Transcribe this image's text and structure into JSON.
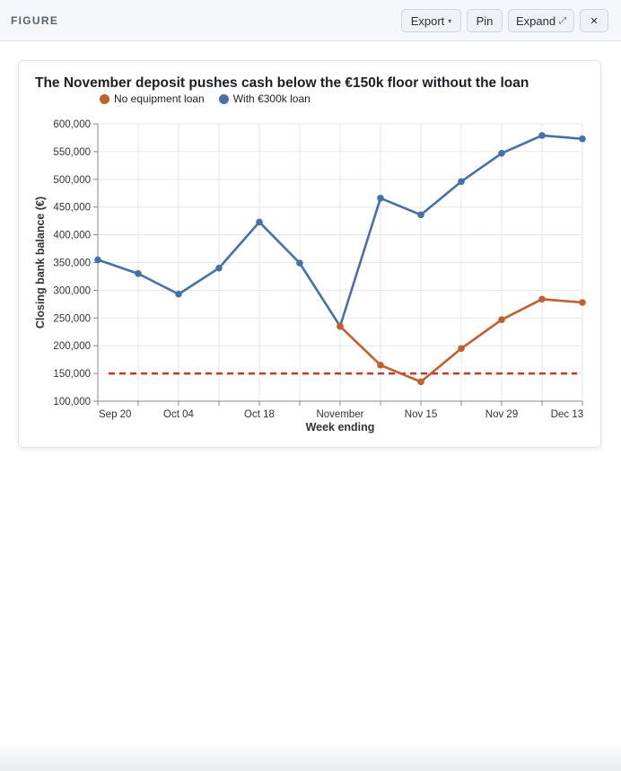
{
  "panel": {
    "title": "FIGURE",
    "export_label": "Export",
    "pin_label": "Pin",
    "expand_label": "Expand",
    "close_label": "✕",
    "caret_icon": "caret-down-icon",
    "expand_icon": "expand-arrow-icon"
  },
  "colors": {
    "no_loan": "#c0602e",
    "with_loan": "#4670a8",
    "floor": "#c0392b",
    "grid": "#e6e6e6"
  },
  "chart_data": {
    "type": "line",
    "title": "The November deposit pushes cash below the €150k floor without the loan",
    "xlabel": "Week ending",
    "ylabel": "Closing bank balance (€)",
    "ylim": [
      100000,
      600000
    ],
    "yticks": [
      "600,000",
      "550,000",
      "500,000",
      "450,000",
      "400,000",
      "350,000",
      "300,000",
      "250,000",
      "200,000",
      "150,000",
      "100,000"
    ],
    "ytick_values": [
      600000,
      550000,
      500000,
      450000,
      400000,
      350000,
      300000,
      250000,
      200000,
      150000,
      100000
    ],
    "xtick_labels": [
      "Sep 20",
      "Oct 04",
      "Oct 18",
      "November",
      "Nov 15",
      "Nov 29",
      "Dec 13"
    ],
    "x": [
      "Sep 20",
      "Sep 27",
      "Oct 04",
      "Oct 11",
      "Oct 18",
      "Oct 25",
      "Nov 01",
      "Nov 08",
      "Nov 15",
      "Nov 22",
      "Nov 29",
      "Dec 06",
      "Dec 13"
    ],
    "series": [
      {
        "name": "No equipment loan",
        "values": [
          null,
          null,
          null,
          null,
          null,
          null,
          235000,
          165000,
          135000,
          195000,
          247000,
          284000,
          278000
        ]
      },
      {
        "name": "With €300k loan",
        "values": [
          355000,
          330000,
          293000,
          340000,
          423000,
          349000,
          235000,
          466000,
          436000,
          496000,
          547000,
          579000,
          573000
        ]
      }
    ],
    "floor": 150000,
    "grid": true,
    "legend_position": "top"
  }
}
